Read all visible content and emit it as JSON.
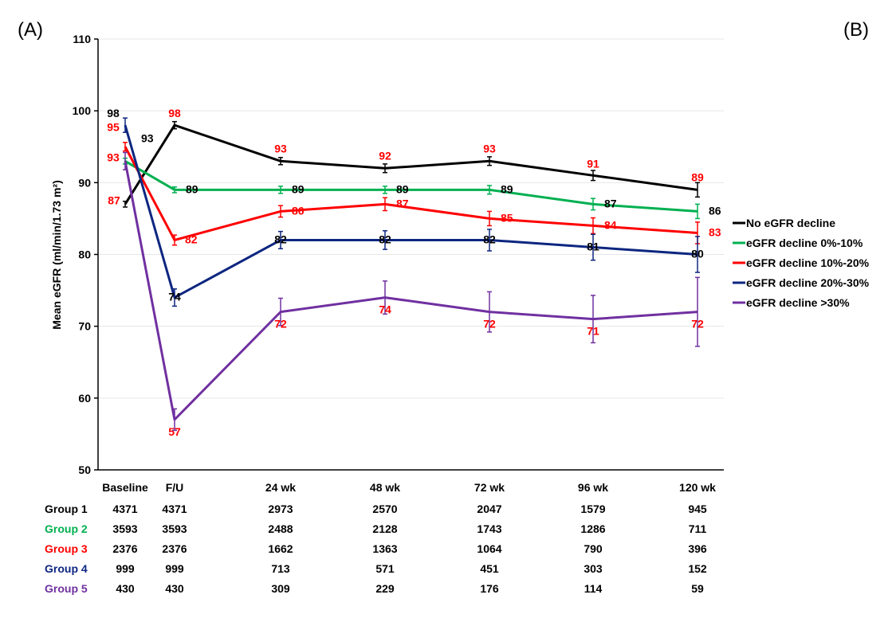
{
  "panel_labels": {
    "left": "(A)",
    "right": "(B)"
  },
  "chart_data": {
    "type": "line",
    "title": "",
    "ylabel": "Mean eGFR (ml/min/1.73 m²)",
    "xlabel": "",
    "ylim": [
      50,
      110
    ],
    "yticks": [
      50,
      60,
      70,
      80,
      90,
      100,
      110
    ],
    "grid": "horizontal",
    "legend_position": "right",
    "categories": [
      "Baseline",
      "F/U",
      "24 wk",
      "48 wk",
      "72 wk",
      "96 wk",
      "120 wk"
    ],
    "series": [
      {
        "name": "No eGFR decline",
        "color": "#000000",
        "values": [
          87,
          98,
          93,
          92,
          93,
          91,
          89
        ],
        "error": [
          0.4,
          0.5,
          0.5,
          0.6,
          0.6,
          0.7,
          1.0
        ],
        "labels": [
          "87",
          "98",
          "93",
          "92",
          "93",
          "91",
          "89"
        ],
        "label_color": "#ff0000"
      },
      {
        "name": "eGFR decline 0%-10%",
        "color": "#00b050",
        "values": [
          93,
          89,
          89,
          89,
          89,
          87,
          86
        ],
        "error": [
          0.4,
          0.4,
          0.5,
          0.5,
          0.6,
          0.8,
          1.0
        ],
        "labels": [
          "93",
          "89",
          "89",
          "89",
          "89",
          "87",
          "86"
        ],
        "label_color": "#000000"
      },
      {
        "name": "eGFR decline 10%-20%",
        "color": "#ff0000",
        "values": [
          95,
          82,
          86,
          87,
          85,
          84,
          83
        ],
        "error": [
          0.6,
          0.7,
          0.8,
          0.9,
          1.0,
          1.1,
          1.5
        ],
        "labels": [
          "95",
          "82",
          "86",
          "87",
          "85",
          "84",
          "83"
        ],
        "label_color": "#ff0000"
      },
      {
        "name": "eGFR decline 20%-30%",
        "color": "#0d2680",
        "values": [
          98,
          74,
          82,
          82,
          82,
          81,
          80
        ],
        "error": [
          1.0,
          1.2,
          1.2,
          1.3,
          1.5,
          1.8,
          2.5
        ],
        "labels": [
          "98",
          "74",
          "82",
          "82",
          "82",
          "81",
          "80"
        ],
        "label_color": "#000000"
      },
      {
        "name": "eGFR decline >30%",
        "color": "#7030a0",
        "values": [
          93,
          57,
          72,
          74,
          72,
          71,
          72
        ],
        "error": [
          1.2,
          1.5,
          1.9,
          2.3,
          2.8,
          3.3,
          4.8
        ],
        "labels": [
          "93",
          "57",
          "72",
          "74",
          "72",
          "71",
          "72"
        ],
        "label_color": "#ff0000"
      }
    ]
  },
  "risk_table": {
    "rows": [
      {
        "group": "Group 1",
        "color": "#000000",
        "counts": [
          "4371",
          "4371",
          "2973",
          "2570",
          "2047",
          "1579",
          "945"
        ]
      },
      {
        "group": "Group 2",
        "color": "#00b050",
        "counts": [
          "3593",
          "3593",
          "2488",
          "2128",
          "1743",
          "1286",
          "711"
        ]
      },
      {
        "group": "Group 3",
        "color": "#ff0000",
        "counts": [
          "2376",
          "2376",
          "1662",
          "1363",
          "1064",
          "790",
          "396"
        ]
      },
      {
        "group": "Group 4",
        "color": "#0d2680",
        "counts": [
          "999",
          "999",
          "713",
          "571",
          "451",
          "303",
          "152"
        ]
      },
      {
        "group": "Group 5",
        "color": "#7030a0",
        "counts": [
          "430",
          "430",
          "309",
          "229",
          "176",
          "114",
          "59"
        ]
      }
    ]
  }
}
